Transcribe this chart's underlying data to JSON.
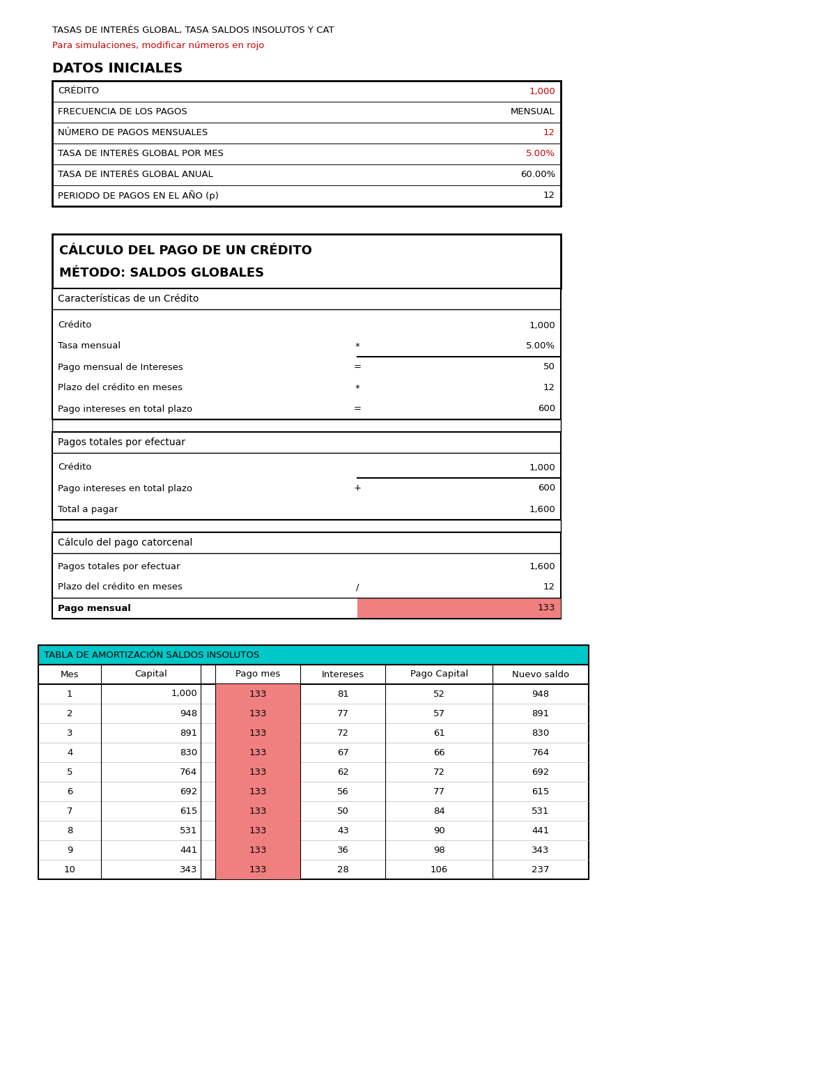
{
  "title1": "TASAS DE INTERÉS GLOBAL, TASA SALDOS INSOLUTOS Y CAT",
  "title2": "Para simulaciones, modificar números en rojo",
  "section1_title": "DATOS INICIALES",
  "datos_iniciales": [
    {
      "label": "CRÉDITO",
      "value": "1,000",
      "value_color": "#cc0000"
    },
    {
      "label": "FRECUENCIA DE LOS PAGOS",
      "value": "MENSUAL",
      "value_color": "#000000"
    },
    {
      "label": "NÚMERO DE PAGOS MENSUALES",
      "value": "12",
      "value_color": "#cc0000"
    },
    {
      "label": "TASA DE INTERÉS GLOBAL POR MES",
      "value": "5.00%",
      "value_color": "#cc0000"
    },
    {
      "label": "TASA DE INTERÉS GLOBAL ANUAL",
      "value": "60.00%",
      "value_color": "#000000"
    },
    {
      "label": "PERIODO DE PAGOS EN EL AÑO (p)",
      "value": "12",
      "value_color": "#000000"
    }
  ],
  "section2_title_line1": "CÁLCULO DEL PAGO DE UN CRÉDITO",
  "section2_title_line2": "MÉTODO: SALDOS GLOBALES",
  "caracteristicas_header": "Características de un Crédito",
  "caracteristicas_rows": [
    {
      "label": "Crédito",
      "op": "",
      "value": "1,000",
      "underline_above": false
    },
    {
      "label": "Tasa mensual",
      "op": "*",
      "value": "5.00%",
      "underline_above": false
    },
    {
      "label": "Pago mensual de Intereses",
      "op": "=",
      "value": "50",
      "underline_above": true
    },
    {
      "label": "Plazo del crédito en meses",
      "op": "*",
      "value": "12",
      "underline_above": false
    },
    {
      "label": "Pago intereses en total plazo",
      "op": "=",
      "value": "600",
      "underline_above": false
    }
  ],
  "pagos_totales_header": "Pagos totales por efectuar",
  "pagos_totales_rows": [
    {
      "label": "Crédito",
      "op": "",
      "value": "1,000",
      "underline_above": false
    },
    {
      "label": "Pago intereses en total plazo",
      "op": "+",
      "value": "600",
      "underline_above": true
    },
    {
      "label": "Total a pagar",
      "op": "",
      "value": "1,600",
      "underline_above": false
    }
  ],
  "calculo_header": "Cálculo del pago catorcenal",
  "calculo_rows": [
    {
      "label": "Pagos totales por efectuar",
      "op": "",
      "value": "1,600",
      "highlight": false
    },
    {
      "label": "Plazo del crédito en meses",
      "op": "/",
      "value": "12",
      "highlight": false
    },
    {
      "label": "Pago mensual",
      "op": "",
      "value": "133",
      "highlight": true
    }
  ],
  "tabla_header": "TABLA DE AMORTIZACIÓN SALDOS INSOLUTOS",
  "tabla_col_labels": [
    "Mes",
    "Capital",
    "",
    "Pago mes",
    "Intereses",
    "Pago Capital",
    "Nuevo saldo"
  ],
  "tabla_data": [
    [
      "1",
      "1,000",
      "",
      "133",
      "81",
      "52",
      "948"
    ],
    [
      "2",
      "948",
      "",
      "133",
      "77",
      "57",
      "891"
    ],
    [
      "3",
      "891",
      "",
      "133",
      "72",
      "61",
      "830"
    ],
    [
      "4",
      "830",
      "",
      "133",
      "67",
      "66",
      "764"
    ],
    [
      "5",
      "764",
      "",
      "133",
      "62",
      "72",
      "692"
    ],
    [
      "6",
      "692",
      "",
      "133",
      "56",
      "77",
      "615"
    ],
    [
      "7",
      "615",
      "",
      "133",
      "50",
      "84",
      "531"
    ],
    [
      "8",
      "531",
      "",
      "133",
      "43",
      "90",
      "441"
    ],
    [
      "9",
      "441",
      "",
      "133",
      "36",
      "98",
      "343"
    ],
    [
      "10",
      "343",
      "",
      "133",
      "28",
      "106",
      "237"
    ]
  ],
  "color_red": "#cc0000",
  "color_pink_bg": "#f08080",
  "color_teal": "#00c8c8",
  "color_black": "#000000",
  "color_white": "#ffffff",
  "bg_color": "#ffffff"
}
